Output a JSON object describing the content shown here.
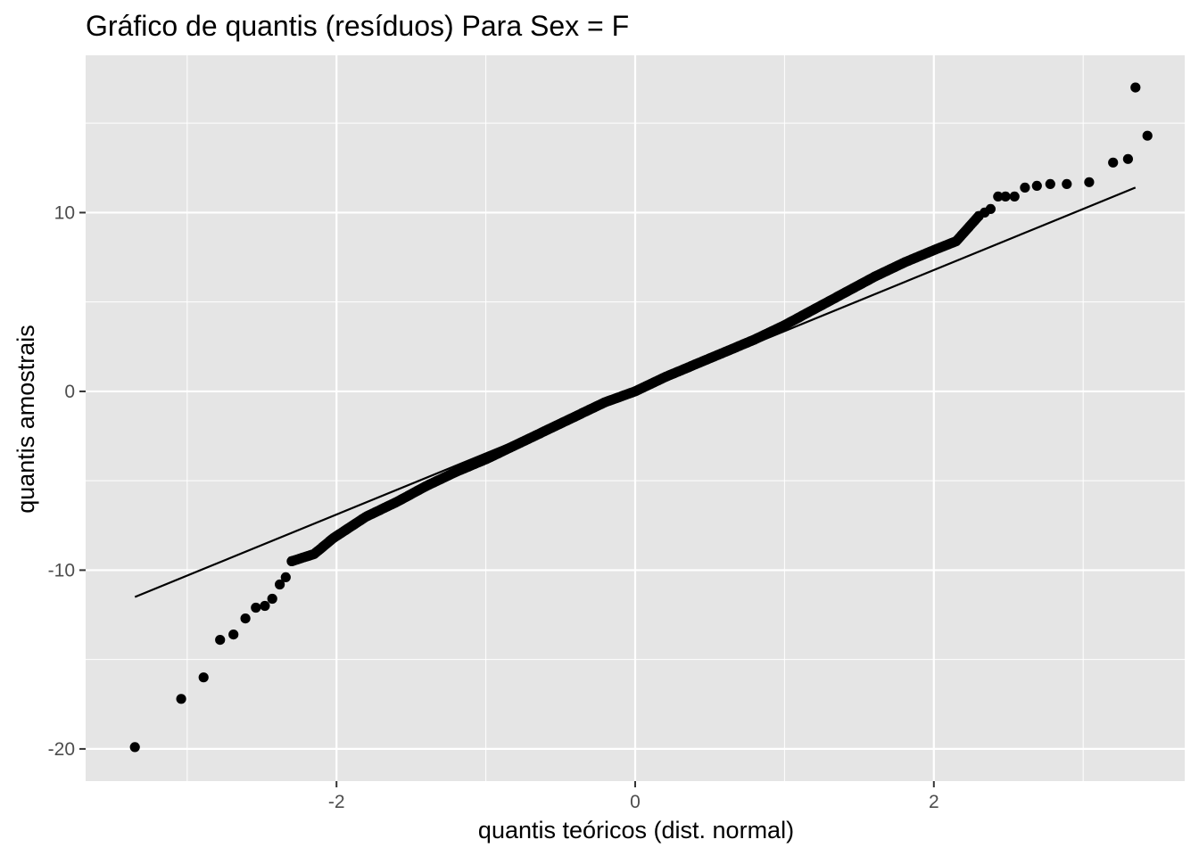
{
  "chart_data": {
    "type": "scatter",
    "title": "Gráfico de quantis (resíduos) Para Sex = F",
    "xlabel": "quantis teóricos (dist. normal)",
    "ylabel": "quantis amostrais",
    "xlim": [
      -3.68,
      3.68
    ],
    "ylim": [
      -21.8,
      18.8
    ],
    "x_ticks": [
      -2,
      0,
      2
    ],
    "x_tick_labels": [
      "-2",
      "0",
      "2"
    ],
    "y_ticks": [
      -20,
      -10,
      0,
      10
    ],
    "y_tick_labels": [
      "-20",
      "-10",
      "0",
      "10"
    ],
    "grid": true,
    "background": "#e5e5e5",
    "grid_color": "#ffffff",
    "point_color": "#000000",
    "reference_line": {
      "x": [
        -3.35,
        3.35
      ],
      "y": [
        -11.5,
        11.4
      ],
      "color": "#000000"
    },
    "series": [
      {
        "tail_points": [
          [
            -3.35,
            -19.9
          ],
          [
            -3.04,
            -17.2
          ],
          [
            -2.89,
            -16.0
          ],
          [
            -2.78,
            -13.9
          ],
          [
            -2.69,
            -13.6
          ],
          [
            -2.61,
            -12.7
          ],
          [
            -2.54,
            -12.1
          ],
          [
            -2.48,
            -12.0
          ],
          [
            -2.43,
            -11.6
          ],
          [
            -2.38,
            -10.8
          ],
          [
            -2.34,
            -10.4
          ],
          [
            -2.3,
            -9.5
          ],
          [
            2.3,
            9.8
          ],
          [
            2.34,
            10.0
          ],
          [
            2.38,
            10.2
          ],
          [
            2.43,
            10.9
          ],
          [
            2.48,
            10.9
          ],
          [
            2.54,
            10.9
          ],
          [
            2.61,
            11.4
          ],
          [
            2.69,
            11.5
          ],
          [
            2.78,
            11.6
          ],
          [
            2.89,
            11.6
          ],
          [
            3.04,
            11.7
          ],
          [
            3.2,
            12.8
          ],
          [
            3.3,
            13.0
          ],
          [
            3.43,
            14.3
          ],
          [
            3.35,
            17.0
          ]
        ],
        "body_curve": [
          [
            -2.3,
            -9.5
          ],
          [
            -2.15,
            -9.1
          ],
          [
            -2.02,
            -8.2
          ],
          [
            -1.8,
            -7.0
          ],
          [
            -1.6,
            -6.2
          ],
          [
            -1.4,
            -5.3
          ],
          [
            -1.2,
            -4.5
          ],
          [
            -1.0,
            -3.8
          ],
          [
            -0.8,
            -3.0
          ],
          [
            -0.6,
            -2.2
          ],
          [
            -0.4,
            -1.4
          ],
          [
            -0.2,
            -0.6
          ],
          [
            0.0,
            0.0
          ],
          [
            0.2,
            0.8
          ],
          [
            0.4,
            1.5
          ],
          [
            0.6,
            2.2
          ],
          [
            0.8,
            2.9
          ],
          [
            1.0,
            3.7
          ],
          [
            1.2,
            4.6
          ],
          [
            1.4,
            5.5
          ],
          [
            1.6,
            6.4
          ],
          [
            1.8,
            7.2
          ],
          [
            2.0,
            7.9
          ],
          [
            2.15,
            8.4
          ],
          [
            2.3,
            9.8
          ]
        ],
        "body_point_count": 460
      }
    ]
  }
}
